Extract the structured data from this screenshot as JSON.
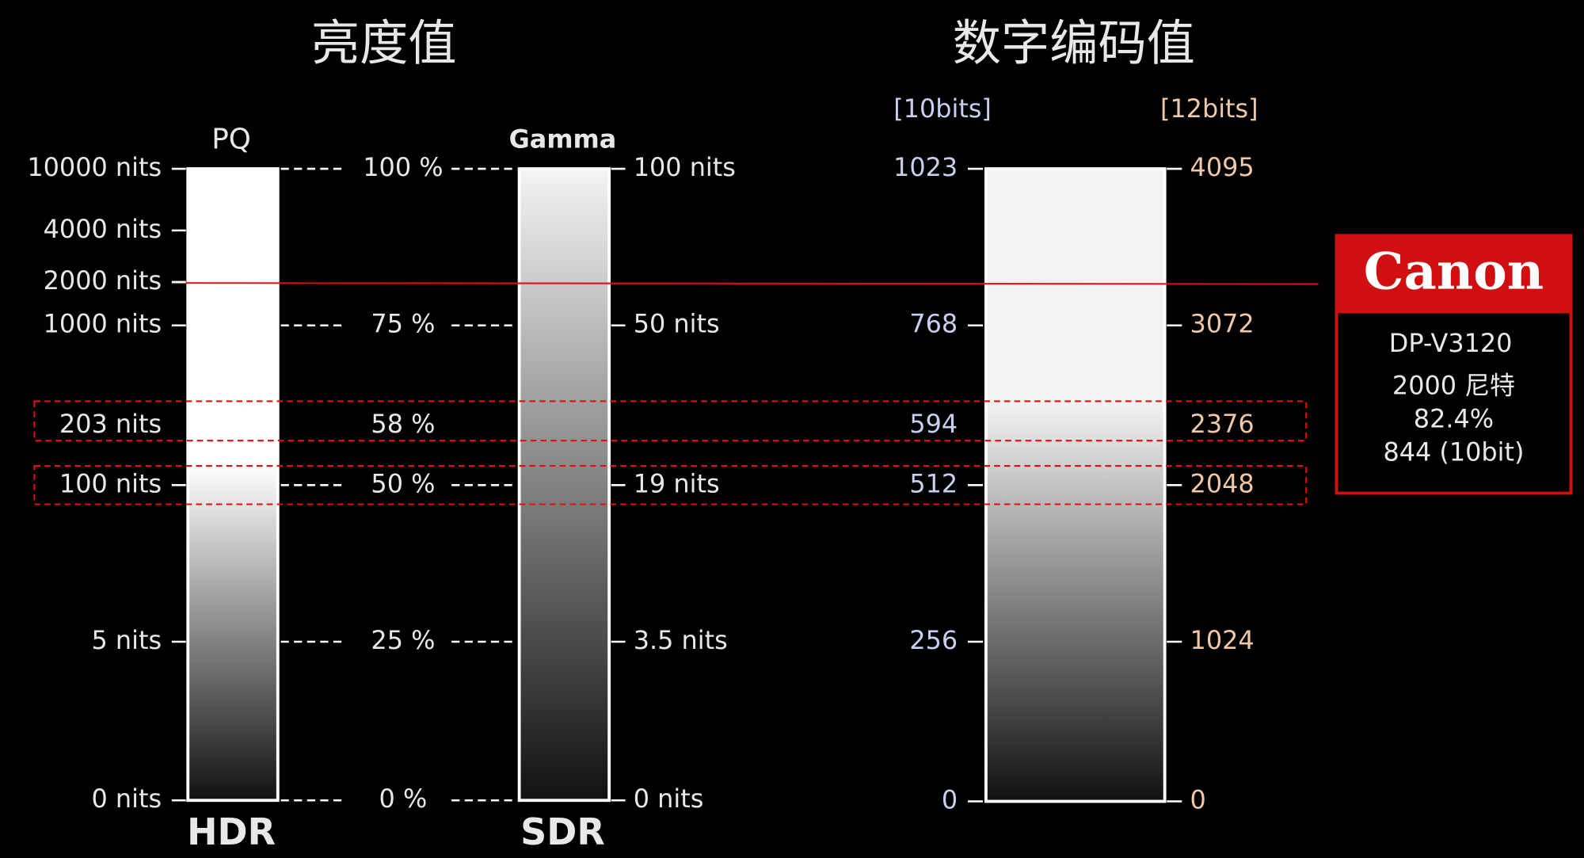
{
  "titles": {
    "luminance": "亮度值",
    "code": "数字编码值"
  },
  "hdr": {
    "curve": "PQ",
    "label": "HDR",
    "ticks": [
      "10000 nits",
      "4000 nits",
      "2000 nits",
      "1000 nits",
      "203 nits",
      "100 nits",
      "5 nits",
      "0 nits"
    ]
  },
  "percent": [
    "100 %",
    "75 %",
    "58 %",
    "50 %",
    "25 %",
    "0 %"
  ],
  "sdr": {
    "curve": "Gamma",
    "label": "SDR",
    "ticks": [
      "100 nits",
      "50 nits",
      "19 nits",
      "3.5 nits",
      "0 nits"
    ]
  },
  "code": {
    "bits10": "[10bits]",
    "bits12": "[12bits]",
    "ticks10": [
      "1023",
      "768",
      "594",
      "512",
      "256",
      "0"
    ],
    "ticks12": [
      "4095",
      "3072",
      "2376",
      "2048",
      "1024",
      "0"
    ]
  },
  "canon": {
    "brand": "Canon",
    "model": "DP-V3120",
    "nits": "2000 尼特",
    "percent": "82.4%",
    "code": "844 (10bit)"
  }
}
